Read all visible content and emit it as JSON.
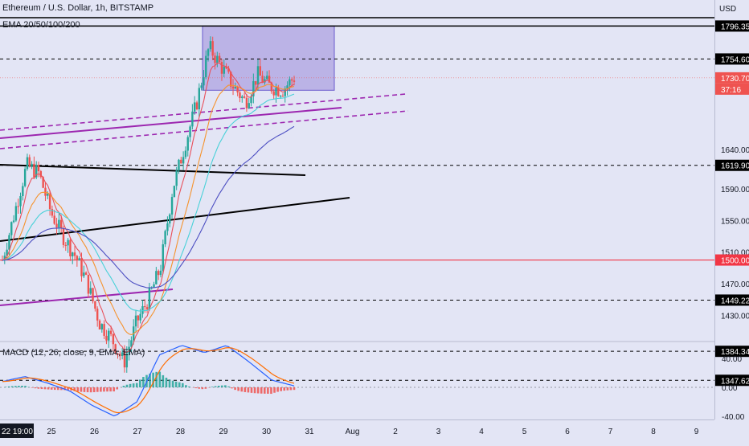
{
  "header": {
    "symbol_title": "Ethereum / U.S. Dollar, 1h, BITSTAMP",
    "ema_indicator": "EMA 20/50/100/200",
    "macd_indicator": "MACD (12, 26, close, 9, EMA, EMA)",
    "currency": "USD"
  },
  "colors": {
    "background": "#e3e5f5",
    "candle_up": "#26a69a",
    "candle_down": "#ef5350",
    "ema20": "#e8505b",
    "ema50": "#f5932e",
    "ema100": "#48d1d8",
    "ema200": "#4d4fc2",
    "support_line": "#000000",
    "channel_line": "#9c27b0",
    "horizontal_red": "#f23645",
    "range_box": "#9a8ad8",
    "macd_line": "#2962ff",
    "signal_line": "#ff6d00"
  },
  "price_axis": {
    "ticks": [
      "1640.00",
      "1590.00",
      "1550.00",
      "1510.00",
      "1470.00",
      "1430.00"
    ],
    "price_labels": [
      {
        "text": "1796.35",
        "style": "black"
      },
      {
        "text": "1754.60",
        "style": "black"
      },
      {
        "text": "1730.70",
        "style": "current"
      },
      {
        "text": "37:16",
        "style": "current-sub"
      },
      {
        "text": "1619.90",
        "style": "black"
      },
      {
        "text": "1500.00",
        "style": "red"
      },
      {
        "text": "1449.22",
        "style": "black"
      },
      {
        "text": "1384.34",
        "style": "black"
      },
      {
        "text": "1347.62",
        "style": "black"
      }
    ]
  },
  "macd_axis": {
    "ticks": [
      "40.00",
      "0.00",
      "-40.00"
    ]
  },
  "time_axis": {
    "first_label": "22 19:00",
    "labels": [
      "25",
      "26",
      "27",
      "28",
      "29",
      "30",
      "31",
      "Aug",
      "2",
      "3",
      "4",
      "5",
      "6",
      "7",
      "8",
      "9"
    ]
  },
  "chart_data": {
    "type": "candlestick",
    "title": "Ethereum / U.S. Dollar, 1h, BITSTAMP",
    "ylim": [
      1340,
      1830
    ],
    "current_price": 1730.7,
    "countdown": "37:16",
    "horizontal_levels": [
      1796.35,
      1754.6,
      1619.9,
      1500.0,
      1449.22,
      1384.34,
      1347.62
    ],
    "price_path": [
      [
        "Jul 24",
        1500
      ],
      [
        "Jul 24",
        1560
      ],
      [
        "Jul 24",
        1620
      ],
      [
        "Jul 25",
        1610
      ],
      [
        "Jul 25",
        1560
      ],
      [
        "Jul 25",
        1530
      ],
      [
        "Jul 25",
        1505
      ],
      [
        "Jul 26",
        1470
      ],
      [
        "Jul 26",
        1420
      ],
      [
        "Jul 26",
        1400
      ],
      [
        "Jul 27",
        1370
      ],
      [
        "Jul 27",
        1420
      ],
      [
        "Jul 27",
        1450
      ],
      [
        "Jul 27",
        1490
      ],
      [
        "Jul 28",
        1590
      ],
      [
        "Jul 28",
        1645
      ],
      [
        "Jul 28",
        1700
      ],
      [
        "Jul 28",
        1770
      ],
      [
        "Jul 29",
        1745
      ],
      [
        "Jul 29",
        1720
      ],
      [
        "Jul 29",
        1700
      ],
      [
        "Jul 30",
        1735
      ],
      [
        "Jul 30",
        1720
      ],
      [
        "Jul 30",
        1715
      ],
      [
        "Jul 30",
        1731
      ]
    ],
    "macd": {
      "ylim": [
        -50,
        65
      ],
      "macd_path": [
        [
          "Jul 24",
          8
        ],
        [
          "Jul 25",
          15
        ],
        [
          "Jul 25",
          6
        ],
        [
          "Jul 26",
          -5
        ],
        [
          "Jul 26",
          -25
        ],
        [
          "Jul 27",
          -40
        ],
        [
          "Jul 27",
          -20
        ],
        [
          "Jul 28",
          45
        ],
        [
          "Jul 28",
          58
        ],
        [
          "Jul 29",
          48
        ],
        [
          "Jul 29",
          58
        ],
        [
          "Jul 30",
          35
        ],
        [
          "Jul 30",
          10
        ],
        [
          "Jul 30",
          2
        ]
      ]
    }
  }
}
